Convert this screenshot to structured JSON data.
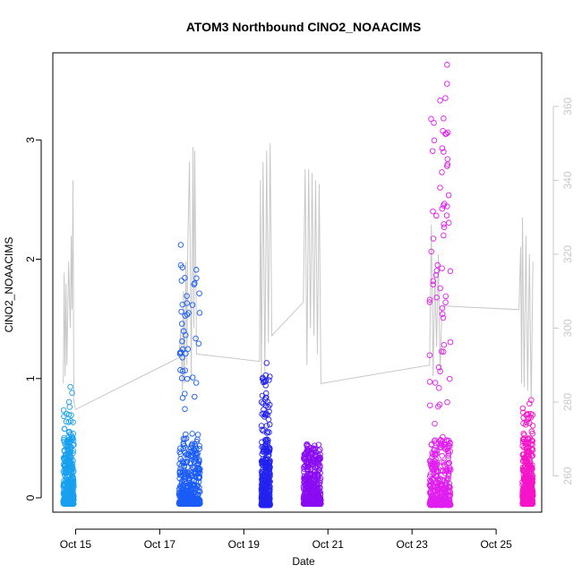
{
  "chart_data": {
    "type": "scatter",
    "title": "ATOM3 Northbound ClNO2_NOAACIMS",
    "xlabel": "Date",
    "ylabel": "ClNO2_NOAACIMS",
    "xlim": [
      "2017-10-14 11:00",
      "2017-10-26 02:00"
    ],
    "ylim": [
      -0.12,
      3.73
    ],
    "y2lim": [
      250.2,
      374.5
    ],
    "x_ticks": [
      {
        "date": "2017-10-15",
        "label": "Oct 15"
      },
      {
        "date": "2017-10-17",
        "label": "Oct 17"
      },
      {
        "date": "2017-10-19",
        "label": "Oct 19"
      },
      {
        "date": "2017-10-21",
        "label": "Oct 21"
      },
      {
        "date": "2017-10-23",
        "label": "Oct 23"
      },
      {
        "date": "2017-10-25",
        "label": "Oct 25"
      }
    ],
    "y_ticks": [
      "0",
      "1",
      "2",
      "3"
    ],
    "y2_ticks": [
      "260",
      "280",
      "300",
      "320",
      "340",
      "360"
    ],
    "grid": false,
    "series": [
      {
        "color": "#19a0f0",
        "x_range": [
          "2017-10-14 17:00",
          "2017-10-14 23:00"
        ],
        "y_min": -0.05,
        "y_max": 0.93,
        "outliers": [
          [
            "2017-10-14 21:00",
            0.93
          ],
          [
            "2017-10-14 22:00",
            0.88
          ]
        ]
      },
      {
        "color": "#1a5cf7",
        "x_range": [
          "2017-10-17 11:00",
          "2017-10-17 23:00"
        ],
        "y_min": -0.05,
        "y_max": 2.12,
        "outliers": [
          [
            "2017-10-17 12:00",
            2.12
          ],
          [
            "2017-10-17 12:00",
            1.95
          ],
          [
            "2017-10-17 12:30",
            1.82
          ],
          [
            "2017-10-17 13:00",
            1.62
          ],
          [
            "2017-10-17 12:00",
            1.22
          ]
        ]
      },
      {
        "color": "#2323f0",
        "x_range": [
          "2017-10-19 10:00",
          "2017-10-19 15:00"
        ],
        "y_min": -0.06,
        "y_max": 1.13,
        "outliers": [
          [
            "2017-10-19 13:00",
            1.13
          ]
        ]
      },
      {
        "color": "#8a0cf2",
        "x_range": [
          "2017-10-20 10:00",
          "2017-10-20 20:00"
        ],
        "y_min": -0.05,
        "y_max": 0.45,
        "outliers": [
          [
            "2017-10-20 12:00",
            0.45
          ],
          [
            "2017-10-20 12:00",
            0.4
          ]
        ]
      },
      {
        "color": "#e11ef0",
        "x_range": [
          "2017-10-23 10:00",
          "2017-10-23 22:00"
        ],
        "y_min": -0.06,
        "y_max": 3.63,
        "outliers": [
          [
            "2017-10-23 20:00",
            3.63
          ],
          [
            "2017-10-23 20:00",
            3.47
          ],
          [
            "2017-10-23 19:00",
            3.35
          ],
          [
            "2017-10-23 16:00",
            3.33
          ],
          [
            "2017-10-23 18:00",
            3.18
          ],
          [
            "2017-10-23 19:00",
            3.05
          ],
          [
            "2017-10-23 18:00",
            2.9
          ],
          [
            "2017-10-23 20:00",
            2.78
          ],
          [
            "2017-10-23 16:00",
            2.6
          ],
          [
            "2017-10-23 18:00",
            2.45
          ]
        ]
      },
      {
        "color": "#f515c8",
        "x_range": [
          "2017-10-25 15:00",
          "2017-10-25 21:00"
        ],
        "y_min": -0.05,
        "y_max": 0.82,
        "outliers": [
          [
            "2017-10-25 20:00",
            0.82
          ],
          [
            "2017-10-25 19:00",
            0.79
          ]
        ]
      }
    ],
    "secondary_line": {
      "color": "#c8c8c8",
      "axis": "right",
      "points": [
        [
          "2017-10-14 17:00",
          285
        ],
        [
          "2017-10-14 17:30",
          315
        ],
        [
          "2017-10-14 18:00",
          287
        ],
        [
          "2017-10-14 18:30",
          312
        ],
        [
          "2017-10-14 19:00",
          290
        ],
        [
          "2017-10-14 20:00",
          318
        ],
        [
          "2017-10-14 21:00",
          300
        ],
        [
          "2017-10-14 21:30",
          325
        ],
        [
          "2017-10-14 22:00",
          305
        ],
        [
          "2017-10-14 22:30",
          340
        ],
        [
          "2017-10-14 23:00",
          280
        ],
        [
          "2017-10-15 00:00",
          278
        ],
        [
          "2017-10-17 11:00",
          292
        ],
        [
          "2017-10-17 12:00",
          300
        ],
        [
          "2017-10-17 13:00",
          283
        ],
        [
          "2017-10-17 13:30",
          310
        ],
        [
          "2017-10-17 14:00",
          285
        ],
        [
          "2017-10-17 15:00",
          318
        ],
        [
          "2017-10-17 15:30",
          290
        ],
        [
          "2017-10-17 16:00",
          322
        ],
        [
          "2017-10-17 17:00",
          345
        ],
        [
          "2017-10-17 18:00",
          286
        ],
        [
          "2017-10-17 19:00",
          349
        ],
        [
          "2017-10-17 19:30",
          300
        ],
        [
          "2017-10-17 20:00",
          348
        ],
        [
          "2017-10-17 21:00",
          293
        ],
        [
          "2017-10-19 09:00",
          291
        ],
        [
          "2017-10-19 09:30",
          340
        ],
        [
          "2017-10-19 10:00",
          286
        ],
        [
          "2017-10-19 11:00",
          345
        ],
        [
          "2017-10-19 12:00",
          288
        ],
        [
          "2017-10-19 13:00",
          348
        ],
        [
          "2017-10-19 14:00",
          296
        ],
        [
          "2017-10-19 15:00",
          350
        ],
        [
          "2017-10-19 16:00",
          298
        ],
        [
          "2017-10-20 10:00",
          307
        ],
        [
          "2017-10-20 11:00",
          343
        ],
        [
          "2017-10-20 12:00",
          290
        ],
        [
          "2017-10-20 13:00",
          343
        ],
        [
          "2017-10-20 14:00",
          300
        ],
        [
          "2017-10-20 15:00",
          342
        ],
        [
          "2017-10-20 16:00",
          298
        ],
        [
          "2017-10-20 17:00",
          340
        ],
        [
          "2017-10-20 18:00",
          293
        ],
        [
          "2017-10-20 19:00",
          339
        ],
        [
          "2017-10-20 20:00",
          285
        ],
        [
          "2017-10-23 10:00",
          290
        ],
        [
          "2017-10-23 11:00",
          328
        ],
        [
          "2017-10-23 12:00",
          287
        ],
        [
          "2017-10-23 13:00",
          315
        ],
        [
          "2017-10-23 14:00",
          295
        ],
        [
          "2017-10-23 15:00",
          320
        ],
        [
          "2017-10-23 16:00",
          288
        ],
        [
          "2017-10-23 17:00",
          305
        ],
        [
          "2017-10-23 18:00",
          306
        ],
        [
          "2017-10-25 13:00",
          305
        ],
        [
          "2017-10-25 14:00",
          322
        ],
        [
          "2017-10-25 14:30",
          285
        ],
        [
          "2017-10-25 15:00",
          330
        ],
        [
          "2017-10-25 16:00",
          284
        ],
        [
          "2017-10-25 17:00",
          325
        ],
        [
          "2017-10-25 18:00",
          283
        ],
        [
          "2017-10-25 19:00",
          320
        ],
        [
          "2017-10-25 20:00",
          279
        ],
        [
          "2017-10-25 21:00",
          318
        ]
      ]
    }
  }
}
